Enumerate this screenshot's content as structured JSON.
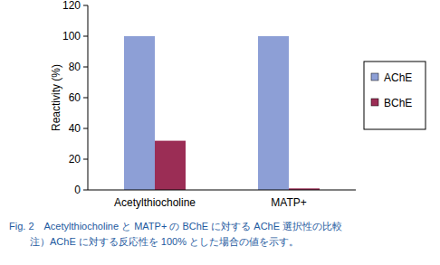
{
  "chart_data": {
    "type": "bar",
    "title": "Fig. 2　Acetylthiocholine と MATP+ の BChE に対する AChE 選択性の比較",
    "subtitle": "注）AChE に対する反応性を 100% とした場合の値を示す。",
    "y_label": "Reactivity (%)",
    "categories": [
      "Acetylthiocholine",
      "MATP+"
    ],
    "series": [
      {
        "name": "AChE",
        "color": "#8d9fd6",
        "values": [
          100,
          100
        ]
      },
      {
        "name": "BChE",
        "color": "#9b2d55",
        "values": [
          32,
          1
        ]
      }
    ],
    "ylim": [
      0,
      120
    ],
    "yticks": [
      0,
      20,
      40,
      60,
      80,
      100,
      120
    ],
    "grid": false,
    "legend": "right"
  }
}
